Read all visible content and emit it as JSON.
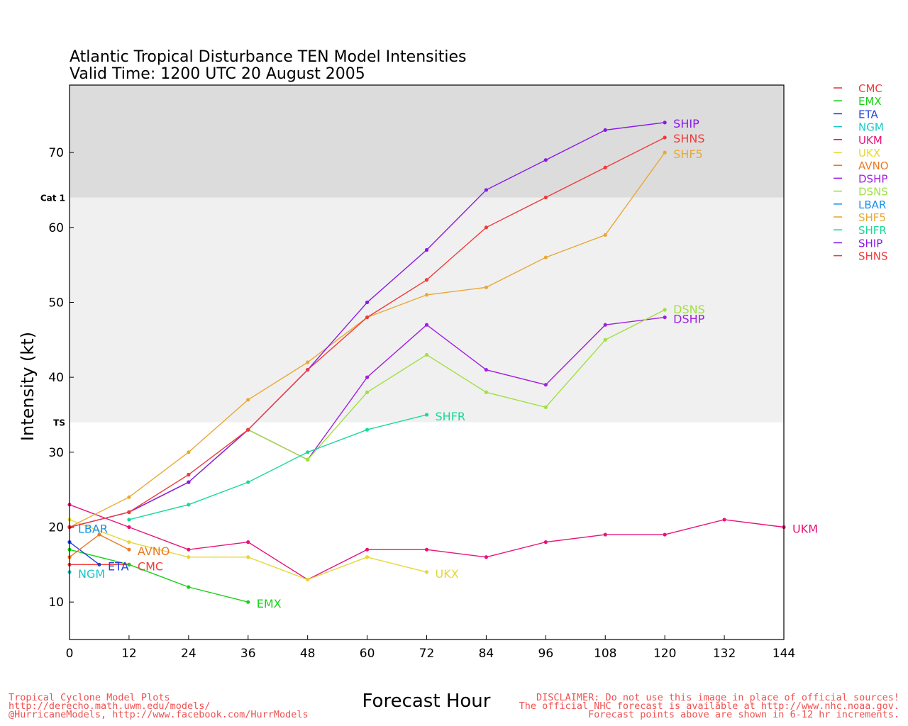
{
  "title": "Atlantic Tropical Disturbance TEN Model Intensities",
  "subtitle": "Valid Time: 1200 UTC 20 August 2005",
  "footer": {
    "left": [
      "Tropical Cyclone Model Plots",
      "http://derecho.math.uwm.edu/models/",
      "@HurricaneModels, http://www.facebook.com/HurrModels"
    ],
    "right": [
      "DISCLAIMER: Do not use this image in place of official sources!",
      "The official NHC forecast is available at http://www.nhc.noaa.gov.",
      "Forecast points above are shown in 6-12 hr increments."
    ]
  },
  "colors": {
    "CMC": "#f03a3a",
    "EMX": "#18d018",
    "ETA": "#2040e0",
    "NGM": "#18c8c8",
    "UKM": "#e8127a",
    "UKX": "#e4d838",
    "AVNO": "#ec7a24",
    "DSHP": "#a020e0",
    "DSNS": "#a0e040",
    "LBAR": "#1890e8",
    "SHF5": "#e8a838",
    "SHFR": "#18d898",
    "SHIP": "#8a18e8",
    "SHNS": "#f03a3a",
    "hurricane_band": "#dcdcdc",
    "ts_band": "#f0f0f0",
    "footer_text": "#f05050"
  },
  "chart_data": {
    "type": "line",
    "title": "Atlantic Tropical Disturbance TEN Model Intensities",
    "subtitle": "Valid Time: 1200 UTC 20 August 2005",
    "xlabel": "Forecast Hour",
    "ylabel": "Intensity (kt)",
    "xlim": [
      0,
      144
    ],
    "ylim": [
      5,
      79
    ],
    "x_ticks": [
      0,
      12,
      24,
      36,
      48,
      60,
      72,
      84,
      96,
      108,
      120,
      132,
      144
    ],
    "y_ticks": [
      10,
      20,
      30,
      40,
      50,
      60,
      70
    ],
    "thresholds": [
      {
        "label": "TS",
        "value": 34
      },
      {
        "label": "Cat 1",
        "value": 64
      }
    ],
    "legend_position": "top-right, outside plot",
    "legend": [
      "CMC",
      "EMX",
      "ETA",
      "NGM",
      "UKM",
      "UKX",
      "AVNO",
      "DSHP",
      "DSNS",
      "LBAR",
      "SHF5",
      "SHFR",
      "SHIP",
      "SHNS"
    ],
    "series": [
      {
        "name": "CMC",
        "x": [
          0,
          12
        ],
        "y": [
          15,
          15
        ]
      },
      {
        "name": "EMX",
        "x": [
          0,
          12,
          24,
          36
        ],
        "y": [
          17,
          15,
          12,
          10
        ]
      },
      {
        "name": "ETA",
        "x": [
          0,
          6
        ],
        "y": [
          18,
          15
        ]
      },
      {
        "name": "NGM",
        "x": [
          0
        ],
        "y": [
          14
        ]
      },
      {
        "name": "UKM",
        "x": [
          0,
          12,
          24,
          36,
          48,
          60,
          72,
          84,
          96,
          108,
          120,
          132,
          144
        ],
        "y": [
          23,
          20,
          17,
          18,
          13,
          17,
          17,
          16,
          18,
          19,
          19,
          21,
          20
        ]
      },
      {
        "name": "UKX",
        "x": [
          0,
          12,
          24,
          36,
          48,
          60,
          72
        ],
        "y": [
          21,
          18,
          16,
          16,
          13,
          16,
          14
        ]
      },
      {
        "name": "AVNO",
        "x": [
          0,
          6,
          12
        ],
        "y": [
          16,
          19,
          17
        ]
      },
      {
        "name": "DSHP",
        "x": [
          0,
          12,
          24,
          36,
          48,
          60,
          72,
          84,
          96,
          108,
          120
        ],
        "y": [
          20,
          22,
          26,
          33,
          29,
          40,
          47,
          41,
          39,
          47,
          48
        ]
      },
      {
        "name": "DSNS",
        "x": [
          0,
          12,
          24,
          36,
          48,
          60,
          72,
          84,
          96,
          108,
          120
        ],
        "y": [
          20,
          22,
          26,
          33,
          29,
          38,
          43,
          38,
          36,
          45,
          49
        ]
      },
      {
        "name": "LBAR",
        "x": [
          0
        ],
        "y": [
          20
        ]
      },
      {
        "name": "SHF5",
        "x": [
          0,
          12,
          24,
          36,
          48,
          60,
          72,
          84,
          96,
          108,
          120
        ],
        "y": [
          20,
          24,
          30,
          37,
          42,
          48,
          51,
          52,
          56,
          59,
          70
        ]
      },
      {
        "name": "SHFR",
        "x": [
          12,
          24,
          36,
          48,
          60,
          72
        ],
        "y": [
          21,
          23,
          26,
          30,
          33,
          35
        ]
      },
      {
        "name": "SHIP",
        "x": [
          0,
          12,
          24,
          36,
          48,
          60,
          72,
          84,
          96,
          108,
          120
        ],
        "y": [
          20,
          22,
          26,
          33,
          41,
          50,
          57,
          65,
          69,
          73,
          74
        ]
      },
      {
        "name": "SHNS",
        "x": [
          0,
          12,
          24,
          36,
          48,
          60,
          72,
          84,
          96,
          108,
          120
        ],
        "y": [
          20,
          22,
          27,
          33,
          41,
          48,
          53,
          60,
          64,
          68,
          72
        ]
      }
    ],
    "end_labels": [
      "LBAR",
      "AVNO",
      "ETA",
      "CMC",
      "NGM",
      "EMX",
      "UKX",
      "UKM",
      "SHFR",
      "DSNS",
      "DSHP",
      "SHIP",
      "SHNS",
      "SHF5"
    ]
  }
}
